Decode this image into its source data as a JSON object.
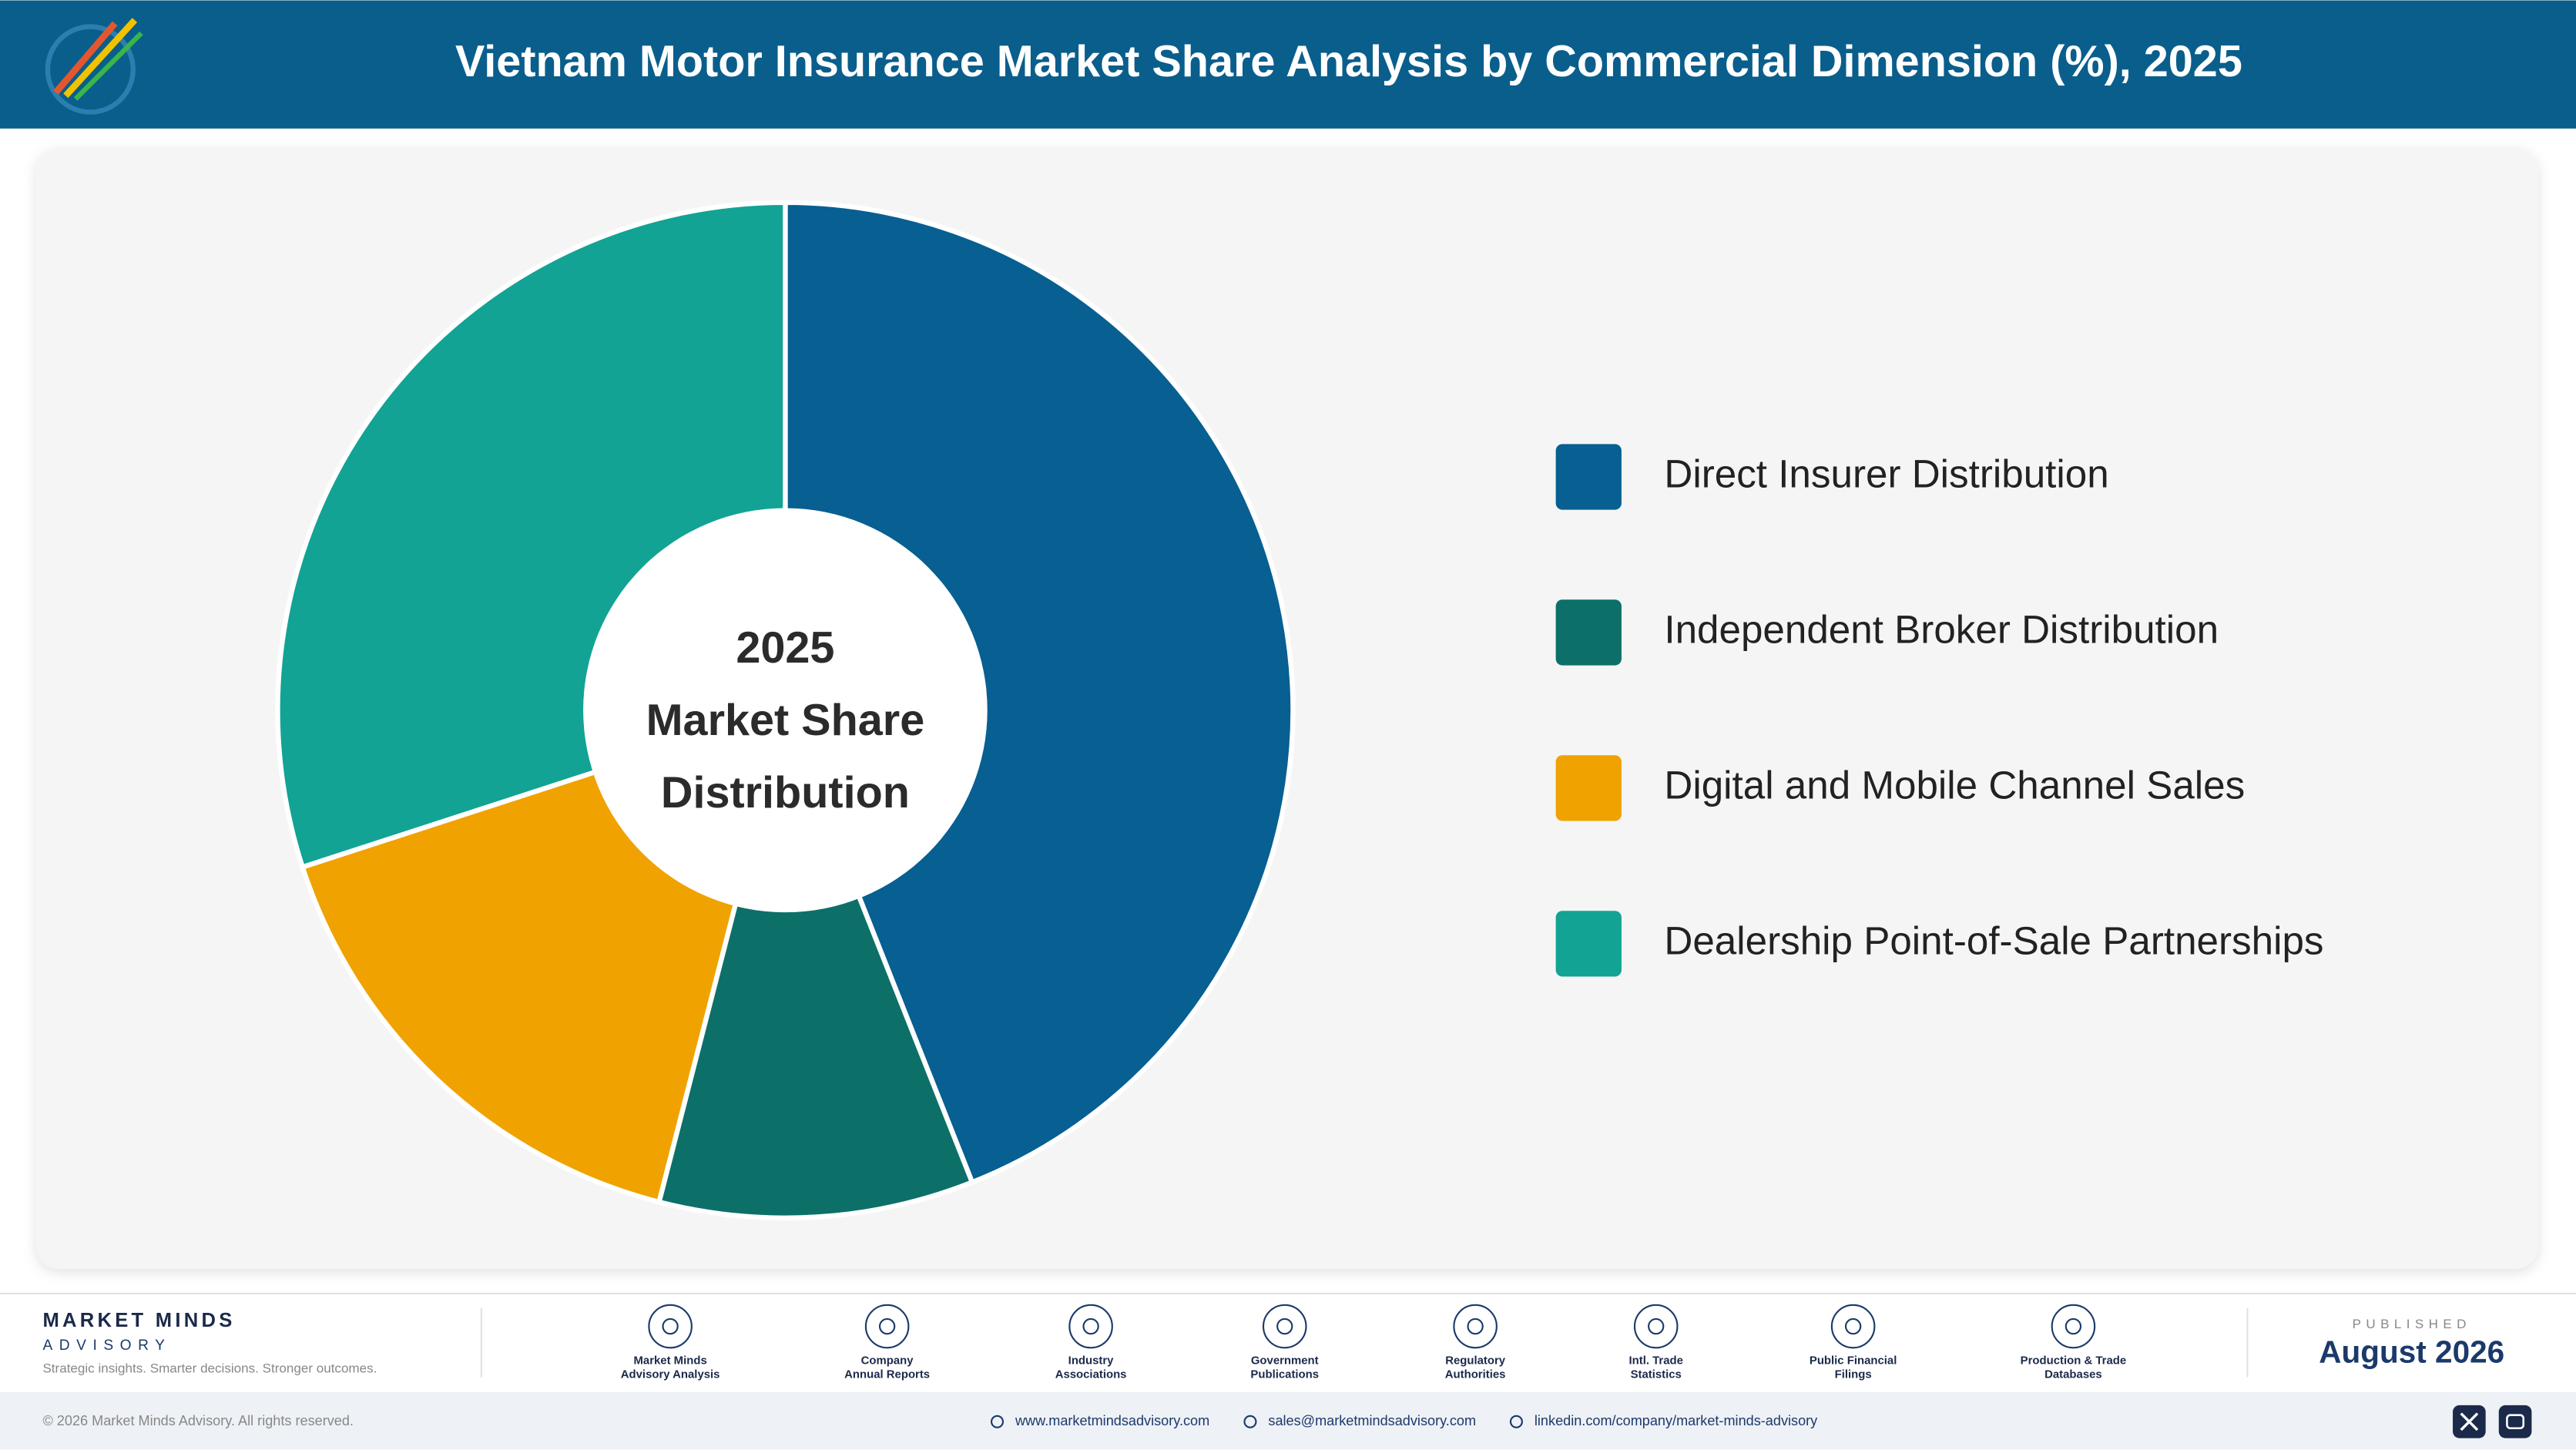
{
  "header": {
    "title": "Vietnam Motor Insurance Market Share Analysis by Commercial Dimension (%), 2025"
  },
  "chart_data": {
    "type": "pie",
    "donut": true,
    "center_label": [
      "2025",
      "Market Share",
      "Distribution"
    ],
    "categories": [
      "Direct Insurer Distribution",
      "Independent Broker Distribution",
      "Digital and Mobile Channel Sales",
      "Dealership Point-of-Sale Partnerships"
    ],
    "values": [
      44,
      10,
      16,
      30
    ],
    "colors": [
      "#075f92",
      "#0c7069",
      "#f0a200",
      "#12a394"
    ],
    "legend": "right"
  },
  "footer": {
    "brand": "MARKET MINDS",
    "brand_sub": "ADVISORY",
    "tagline": "Strategic insights. Smarter decisions. Stronger outcomes.",
    "sources": [
      [
        "Market Minds",
        "Advisory Analysis"
      ],
      [
        "Company",
        "Annual Reports"
      ],
      [
        "Industry",
        "Associations"
      ],
      [
        "Government",
        "Publications"
      ],
      [
        "Regulatory",
        "Authorities"
      ],
      [
        "Intl. Trade",
        "Statistics"
      ],
      [
        "Public Financial",
        "Filings"
      ],
      [
        "Production & Trade",
        "Databases"
      ]
    ],
    "published_label": "PUBLISHED",
    "published_date": "August 2026",
    "copyright": "© 2026 Market Minds Advisory. All rights reserved.",
    "links": [
      "www.marketmindsadvisory.com",
      "sales@marketmindsadvisory.com",
      "linkedin.com/company/market-minds-advisory"
    ]
  }
}
